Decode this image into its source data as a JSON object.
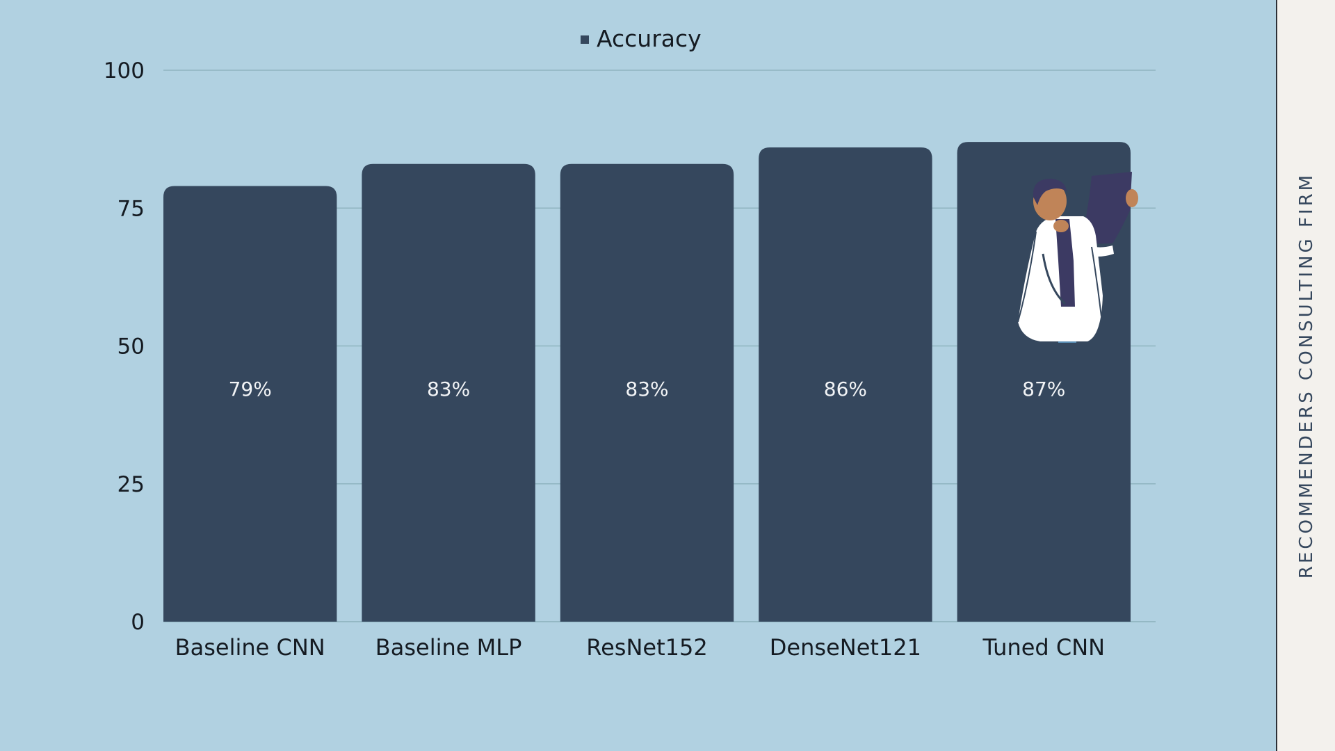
{
  "colors": {
    "background": "#b1d1e1",
    "bar": "#35475d",
    "grid": "#8fb4c0",
    "text": "#151b22",
    "bar_label": "#f2f4f6",
    "side_background": "#f3f1ed",
    "side_text": "#35475d"
  },
  "side_label": "RECOMMENDERS CONSULTING FIRM",
  "illustration": {
    "icon": "doctor-holding-xray-icon",
    "on_category": "Tuned CNN"
  },
  "chart_data": {
    "type": "bar",
    "title": "",
    "xlabel": "",
    "ylabel": "",
    "categories": [
      "Baseline CNN",
      "Baseline MLP",
      "ResNet152",
      "DenseNet121",
      "Tuned CNN"
    ],
    "series": [
      {
        "name": "Accuracy",
        "values": [
          79,
          83,
          83,
          86,
          87
        ],
        "labels": [
          "79%",
          "83%",
          "83%",
          "86%",
          "87%"
        ]
      }
    ],
    "ylim": [
      0,
      100
    ],
    "yticks": [
      0,
      25,
      50,
      75,
      100
    ],
    "grid": true,
    "legend": "top-center"
  }
}
